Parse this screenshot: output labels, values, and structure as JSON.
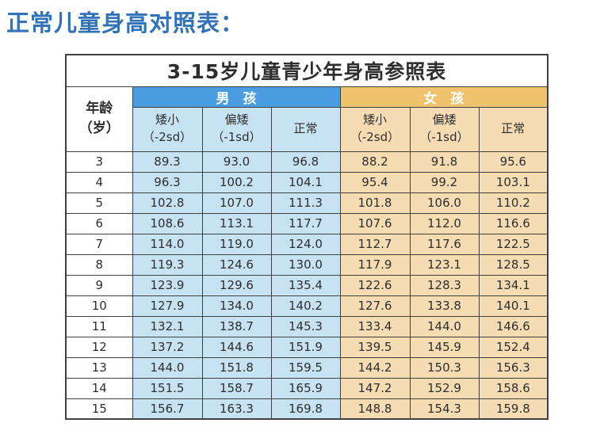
{
  "page_title": "正常儿童身高对照表：",
  "colors": {
    "page_title_color": "#3273B8",
    "table_title_color": "#F09C28",
    "boy_header_bg": "#4A9DE0",
    "girl_header_bg": "#EFC36D",
    "boy_cell_bg": "#C6E2F3",
    "girl_cell_bg": "#F5DCB3",
    "grid_color": "#414141"
  },
  "table": {
    "title": "3-15岁儿童青少年身高参照表",
    "age_header": {
      "line1": "年龄",
      "line2": "（岁）"
    },
    "boy_header": "男　孩",
    "girl_header": "女　孩",
    "sub_headers": [
      {
        "line1": "矮小",
        "line2": "（-2sd）"
      },
      {
        "line1": "偏矮",
        "line2": "（-1sd）"
      },
      {
        "line1": "正常",
        "line2": ""
      }
    ],
    "rows": [
      {
        "age": "3",
        "boy": [
          "89.3",
          "93.0",
          "96.8"
        ],
        "girl": [
          "88.2",
          "91.8",
          "95.6"
        ]
      },
      {
        "age": "4",
        "boy": [
          "96.3",
          "100.2",
          "104.1"
        ],
        "girl": [
          "95.4",
          "99.2",
          "103.1"
        ]
      },
      {
        "age": "5",
        "boy": [
          "102.8",
          "107.0",
          "111.3"
        ],
        "girl": [
          "101.8",
          "106.0",
          "110.2"
        ]
      },
      {
        "age": "6",
        "boy": [
          "108.6",
          "113.1",
          "117.7"
        ],
        "girl": [
          "107.6",
          "112.0",
          "116.6"
        ]
      },
      {
        "age": "7",
        "boy": [
          "114.0",
          "119.0",
          "124.0"
        ],
        "girl": [
          "112.7",
          "117.6",
          "122.5"
        ]
      },
      {
        "age": "8",
        "boy": [
          "119.3",
          "124.6",
          "130.0"
        ],
        "girl": [
          "117.9",
          "123.1",
          "128.5"
        ]
      },
      {
        "age": "9",
        "boy": [
          "123.9",
          "129.6",
          "135.4"
        ],
        "girl": [
          "122.6",
          "128.3",
          "134.1"
        ]
      },
      {
        "age": "10",
        "boy": [
          "127.9",
          "134.0",
          "140.2"
        ],
        "girl": [
          "127.6",
          "133.8",
          "140.1"
        ]
      },
      {
        "age": "11",
        "boy": [
          "132.1",
          "138.7",
          "145.3"
        ],
        "girl": [
          "133.4",
          "144.0",
          "146.6"
        ]
      },
      {
        "age": "12",
        "boy": [
          "137.2",
          "144.6",
          "151.9"
        ],
        "girl": [
          "139.5",
          "145.9",
          "152.4"
        ]
      },
      {
        "age": "13",
        "boy": [
          "144.0",
          "151.8",
          "159.5"
        ],
        "girl": [
          "144.2",
          "150.3",
          "156.3"
        ]
      },
      {
        "age": "14",
        "boy": [
          "151.5",
          "158.7",
          "165.9"
        ],
        "girl": [
          "147.2",
          "152.9",
          "158.6"
        ]
      },
      {
        "age": "15",
        "boy": [
          "156.7",
          "163.3",
          "169.8"
        ],
        "girl": [
          "148.8",
          "154.3",
          "159.8"
        ]
      }
    ]
  }
}
